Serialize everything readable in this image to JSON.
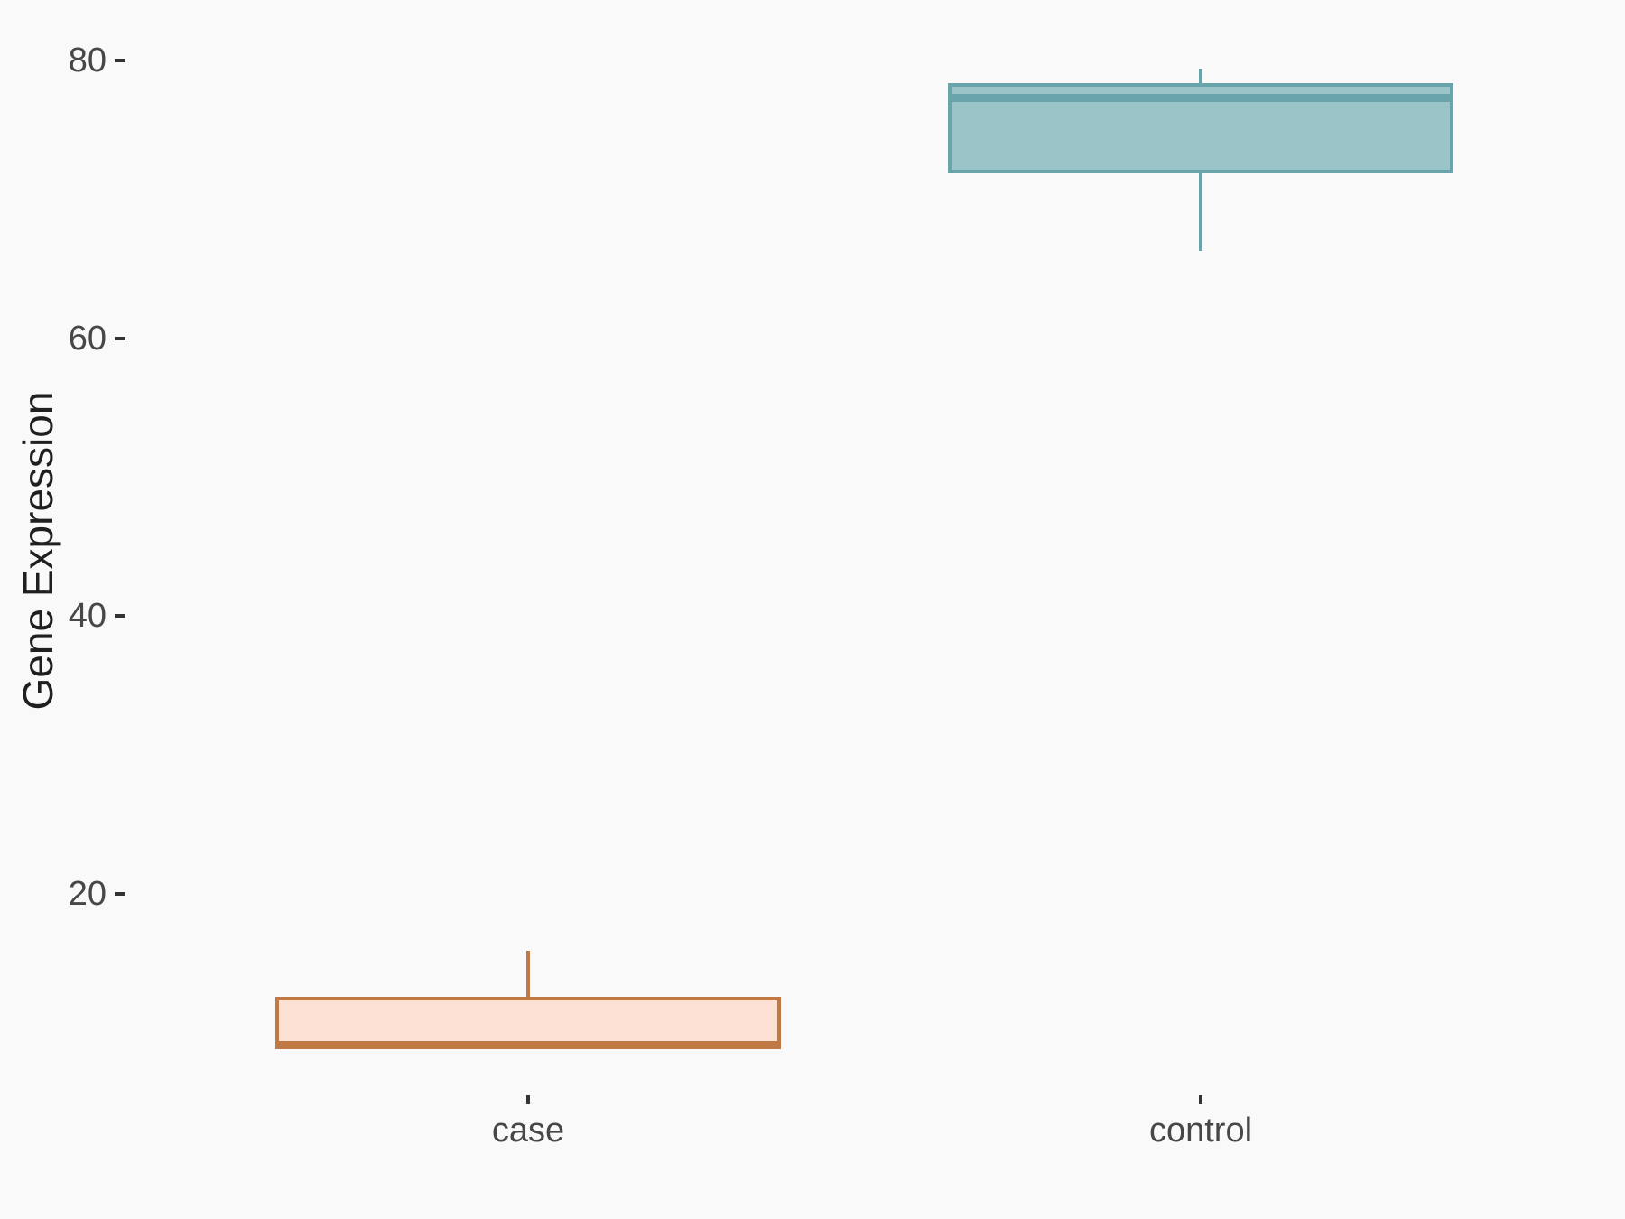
{
  "chart_data": {
    "type": "boxplot",
    "title": "",
    "xlabel": "",
    "ylabel": "Gene Expression",
    "categories": [
      "case",
      "control"
    ],
    "yticks": [
      20,
      40,
      60,
      80
    ],
    "ylim": [
      5,
      82
    ],
    "grid": false,
    "legend": false,
    "orientation": "vertical",
    "series": [
      {
        "name": "case",
        "min": 9.1,
        "q1": 9.1,
        "median": 9.1,
        "q3": 12.6,
        "max": 15.9,
        "stroke": "#C07845",
        "fill": "#FCE0D4"
      },
      {
        "name": "control",
        "min": 66.3,
        "q1": 71.9,
        "median": 77.3,
        "q3": 78.4,
        "max": 79.4,
        "stroke": "#6AA4AB",
        "fill": "#9AC4C7"
      }
    ]
  },
  "colors": {
    "background": "#F9F9F9",
    "tick_mark": "#333333",
    "tick_label": "#474747",
    "axis_title": "#1F1F1F"
  }
}
